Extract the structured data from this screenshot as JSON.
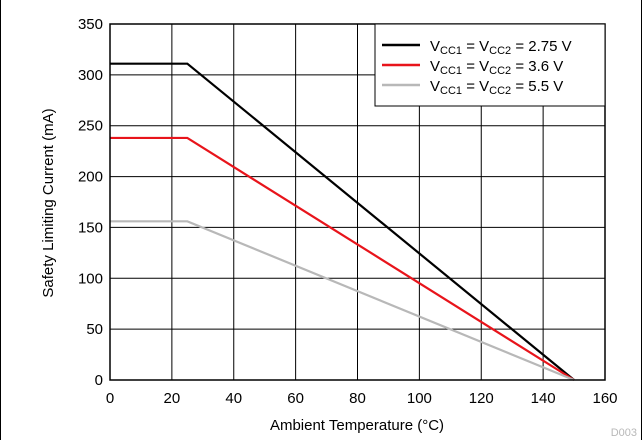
{
  "chart_data": {
    "type": "line",
    "xlabel": "Ambient Temperature (°C)",
    "ylabel": "Safety Limiting Current (mA)",
    "xlim": [
      0,
      160
    ],
    "ylim": [
      0,
      350
    ],
    "xticks": [
      "0",
      "20",
      "40",
      "60",
      "80",
      "100",
      "120",
      "140",
      "160"
    ],
    "yticks": [
      "0",
      "50",
      "100",
      "150",
      "200",
      "250",
      "300",
      "350"
    ],
    "grid": true,
    "legend_position": "top-right",
    "figure_code": "D003",
    "series": [
      {
        "name": "VCC1 = VCC2 = 2.75 V",
        "legend": {
          "v1": "V",
          "s1": "CC1",
          "mid": " = V",
          "s2": "CC2",
          "tail": " = 2.75 V"
        },
        "color": "#000000",
        "points": [
          [
            0,
            311
          ],
          [
            25,
            311
          ],
          [
            150,
            0
          ]
        ]
      },
      {
        "name": "VCC1 = VCC2 = 3.6 V",
        "legend": {
          "v1": "V",
          "s1": "CC1",
          "mid": " = V",
          "s2": "CC2",
          "tail": " = 3.6 V"
        },
        "color": "#e8141b",
        "points": [
          [
            0,
            238
          ],
          [
            25,
            238
          ],
          [
            150,
            0
          ]
        ]
      },
      {
        "name": "VCC1 = VCC2 = 5.5 V",
        "legend": {
          "v1": "V",
          "s1": "CC1",
          "mid": " = V",
          "s2": "CC2",
          "tail": " = 5.5 V"
        },
        "color": "#b8b8b8",
        "points": [
          [
            0,
            156
          ],
          [
            25,
            156
          ],
          [
            150,
            0
          ]
        ]
      }
    ]
  }
}
